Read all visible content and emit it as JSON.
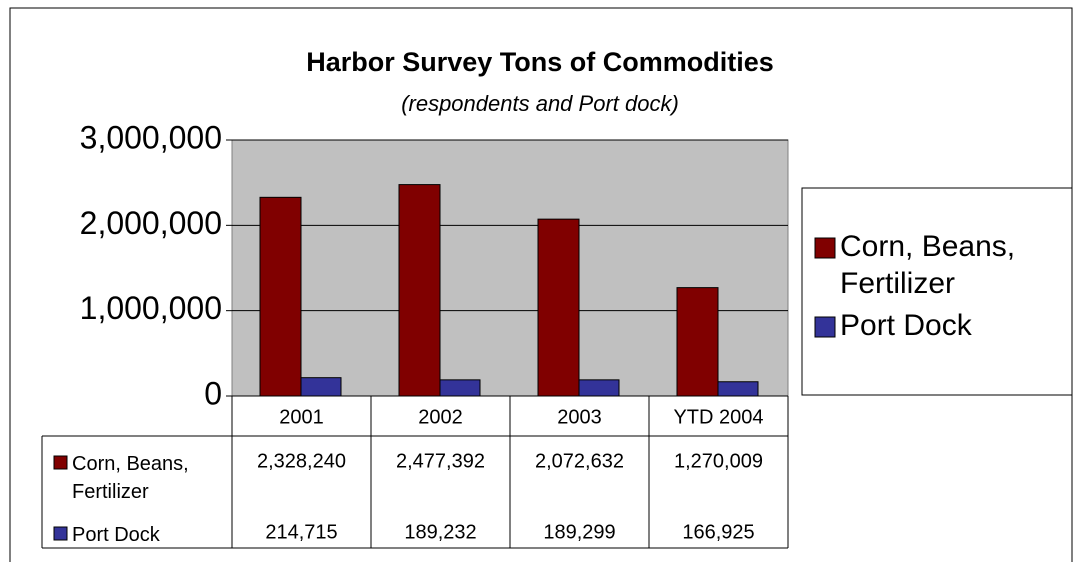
{
  "chart_data": {
    "type": "bar",
    "title": "Harbor Survey Tons of Commodities",
    "subtitle": "(respondents and Port dock)",
    "categories": [
      "2001",
      "2002",
      "2003",
      "YTD 2004"
    ],
    "series": [
      {
        "name": "Corn, Beans, Fertilizer",
        "color": "#800000",
        "values": [
          2328240,
          2477392,
          2072632,
          1270009
        ],
        "value_labels": [
          "2,328,240",
          "2,477,392",
          "2,072,632",
          "1,270,009"
        ]
      },
      {
        "name": "Port Dock",
        "color": "#333399",
        "values": [
          214715,
          189232,
          189299,
          166925
        ],
        "value_labels": [
          "214,715",
          "189,232",
          "189,299",
          "166,925"
        ]
      }
    ],
    "ylim": [
      0,
      3000000
    ],
    "yticks": [
      0,
      {
        "value": 1000000,
        "label": "1,000,000"
      },
      {
        "value": 2000000,
        "label": "2,000,000"
      },
      {
        "value": 3000000,
        "label": "3,000,000"
      }
    ],
    "grid": true,
    "legend": "right",
    "plot_background": "#c0c0c0"
  }
}
